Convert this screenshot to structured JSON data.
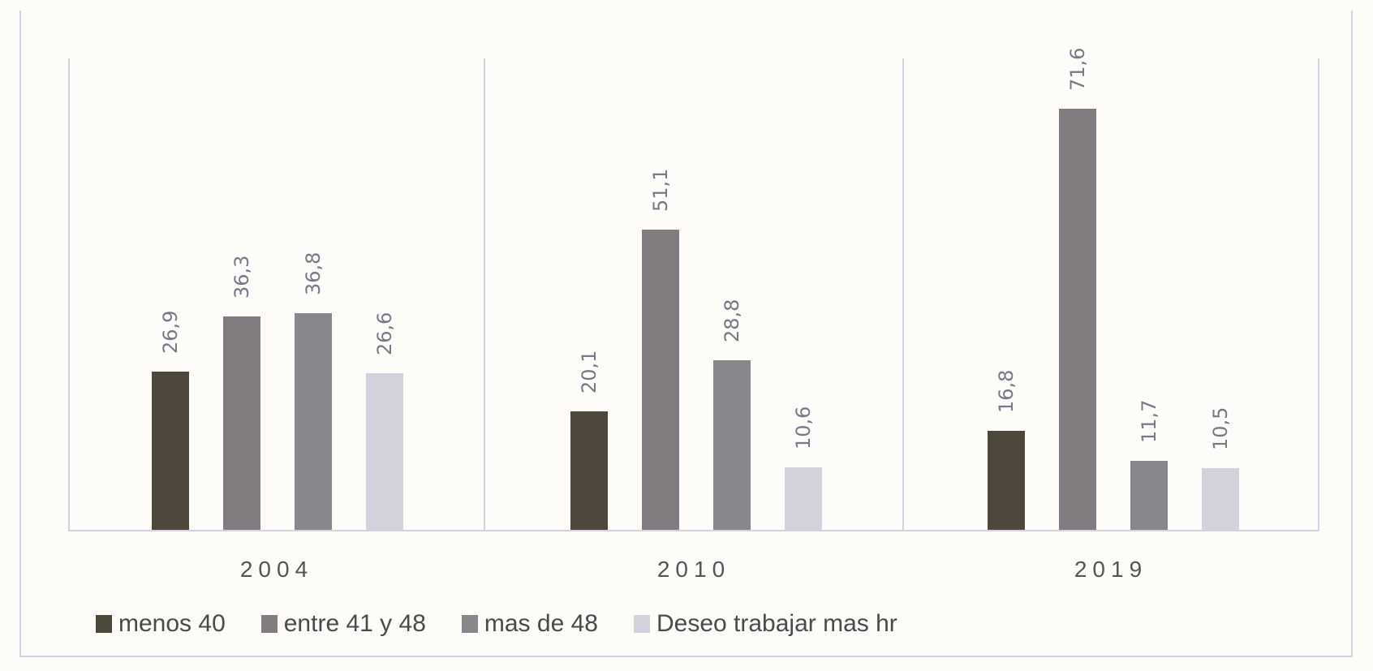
{
  "chart_data": {
    "type": "bar",
    "title": "",
    "xlabel": "",
    "ylabel": "",
    "categories": [
      "2004",
      "2010",
      "2019"
    ],
    "series": [
      {
        "name": "menos 40",
        "color": "#4d473c",
        "values": [
          26.9,
          20.1,
          16.8
        ],
        "labels": [
          "26,9",
          "20,1",
          "16,8"
        ]
      },
      {
        "name": "entre 41 y 48",
        "color": "#817c80",
        "values": [
          36.3,
          51.1,
          71.6
        ],
        "labels": [
          "36,3",
          "51,1",
          "71,6"
        ]
      },
      {
        "name": "mas de 48",
        "color": "#8a878c",
        "values": [
          36.8,
          28.8,
          11.7
        ],
        "labels": [
          "36,8",
          "28,8",
          "11,7"
        ]
      },
      {
        "name": "Deseo trabajar mas hr",
        "color": "#d3d2dc",
        "values": [
          26.6,
          10.6,
          10.5
        ],
        "labels": [
          "26,6",
          "10,6",
          "10,5"
        ]
      }
    ],
    "ylim": [
      0,
      80
    ],
    "grid": false,
    "legend_position": "bottom",
    "data_labels": "rotated-vertical"
  }
}
